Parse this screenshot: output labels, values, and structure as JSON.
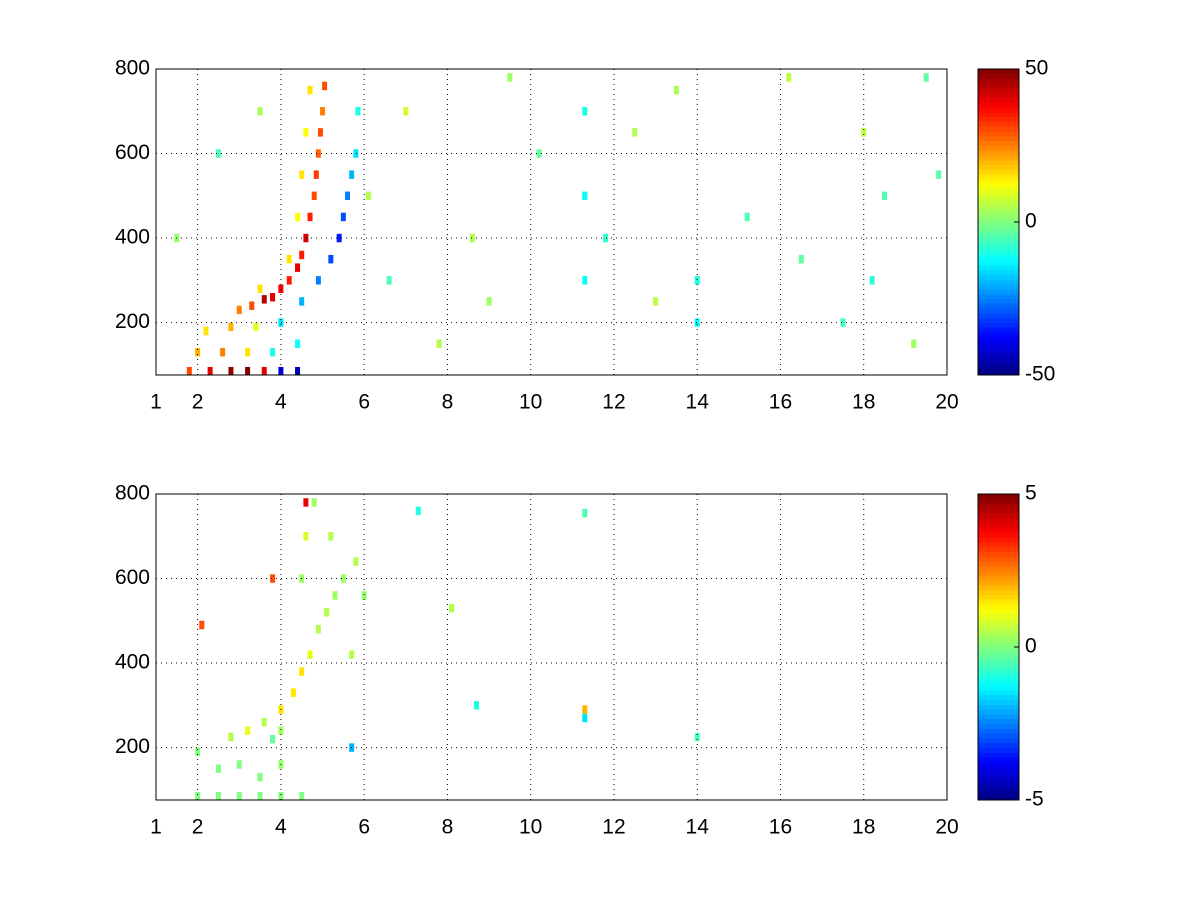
{
  "chart_data": [
    {
      "type": "heatmap",
      "colormap": "jet",
      "grid": true,
      "xlim": [
        1,
        20
      ],
      "xticks": [
        1,
        2,
        4,
        6,
        8,
        10,
        12,
        14,
        16,
        18,
        20
      ],
      "ylim": [
        76,
        800
      ],
      "yticks": [
        200,
        400,
        600,
        800
      ],
      "clim": [
        -50,
        50
      ],
      "cticks": [
        -50,
        0,
        50
      ],
      "x": [
        3.0,
        3.3,
        3.6,
        3.8,
        4.0,
        4.2,
        4.4,
        4.5,
        4.6,
        4.7,
        4.8,
        4.85,
        4.9,
        4.95,
        5.0,
        5.05,
        3.5,
        4.2,
        4.4,
        4.5,
        4.6,
        4.7,
        4.0,
        4.5,
        4.9,
        5.2,
        5.4,
        5.5,
        5.6,
        5.7,
        5.8,
        5.85,
        1.8,
        2.3,
        2.8,
        3.2,
        3.6,
        4.0,
        4.4,
        2.0,
        2.6,
        3.2,
        3.8,
        4.4,
        2.2,
        2.8,
        3.4,
        6.1,
        6.6,
        7.0,
        8.6,
        9.0,
        10.2,
        11.3,
        11.3,
        11.3,
        11.8,
        12.5,
        13.0,
        14.0,
        14.0,
        15.2,
        16.5,
        17.5,
        18.0,
        18.2,
        18.5,
        19.2,
        19.8,
        2.5,
        1.5,
        3.5,
        7.8,
        9.5,
        13.5,
        16.2,
        19.5
      ],
      "y": [
        230,
        240,
        255,
        260,
        280,
        300,
        330,
        360,
        400,
        450,
        500,
        550,
        600,
        650,
        700,
        760,
        280,
        350,
        450,
        550,
        650,
        750,
        200,
        250,
        300,
        350,
        400,
        450,
        500,
        550,
        600,
        700,
        85,
        85,
        85,
        85,
        85,
        85,
        85,
        130,
        130,
        130,
        130,
        150,
        180,
        190,
        190,
        500,
        300,
        700,
        400,
        250,
        600,
        300,
        500,
        700,
        400,
        650,
        250,
        300,
        200,
        450,
        350,
        200,
        650,
        300,
        500,
        150,
        550,
        600,
        400,
        700,
        150,
        780,
        750,
        780,
        780
      ],
      "values": [
        25,
        30,
        45,
        40,
        38,
        35,
        40,
        35,
        42,
        35,
        30,
        32,
        28,
        30,
        25,
        30,
        15,
        15,
        12,
        15,
        12,
        15,
        -15,
        -20,
        -25,
        -30,
        -35,
        -30,
        -25,
        -20,
        -15,
        -10,
        30,
        40,
        48,
        50,
        40,
        -40,
        -45,
        20,
        25,
        15,
        -10,
        -12,
        15,
        20,
        10,
        5,
        -5,
        8,
        5,
        3,
        -3,
        -12,
        -12,
        -10,
        -8,
        5,
        6,
        -10,
        -12,
        -5,
        -3,
        -6,
        6,
        -8,
        -5,
        3,
        -4,
        -5,
        2,
        4,
        5,
        3,
        4,
        6,
        -3
      ]
    },
    {
      "type": "heatmap",
      "colormap": "jet",
      "grid": true,
      "xlim": [
        1,
        20
      ],
      "xticks": [
        1,
        2,
        4,
        6,
        8,
        10,
        12,
        14,
        16,
        18,
        20
      ],
      "ylim": [
        76,
        800
      ],
      "yticks": [
        200,
        400,
        600,
        800
      ],
      "clim": [
        -5,
        5
      ],
      "cticks": [
        -5,
        0,
        5
      ],
      "x": [
        2.8,
        3.2,
        3.6,
        4.0,
        4.3,
        4.5,
        4.7,
        4.9,
        5.1,
        5.3,
        5.5,
        5.8,
        6.0,
        5.2,
        4.8,
        4.6,
        4.5,
        5.7,
        4.0,
        3.8,
        2.0,
        2.5,
        3.0,
        3.5,
        4.0,
        4.5,
        2.5,
        3.0,
        2.0,
        3.5,
        4.0,
        4.6,
        7.3,
        11.3,
        8.7,
        11.3,
        11.3,
        14.0,
        5.7,
        8.1,
        3.8,
        2.1
      ],
      "y": [
        225,
        240,
        260,
        290,
        330,
        380,
        420,
        480,
        520,
        560,
        600,
        640,
        560,
        700,
        780,
        700,
        600,
        420,
        240,
        220,
        85,
        85,
        85,
        85,
        85,
        85,
        150,
        160,
        190,
        130,
        160,
        780,
        760,
        755,
        300,
        290,
        270,
        225,
        200,
        530,
        600,
        490
      ],
      "values": [
        0.5,
        1,
        0.5,
        1.5,
        1.5,
        1.5,
        1,
        0.5,
        0.5,
        0.3,
        0.3,
        0.5,
        0.2,
        0.5,
        0.3,
        0.8,
        0.3,
        0.5,
        0.3,
        -0.3,
        0,
        0,
        0,
        0,
        0,
        0,
        0,
        0,
        0,
        0,
        0.2,
        4,
        -1,
        -0.5,
        -1,
        2,
        -1.5,
        -0.5,
        -2,
        0.5,
        3,
        3
      ]
    }
  ]
}
